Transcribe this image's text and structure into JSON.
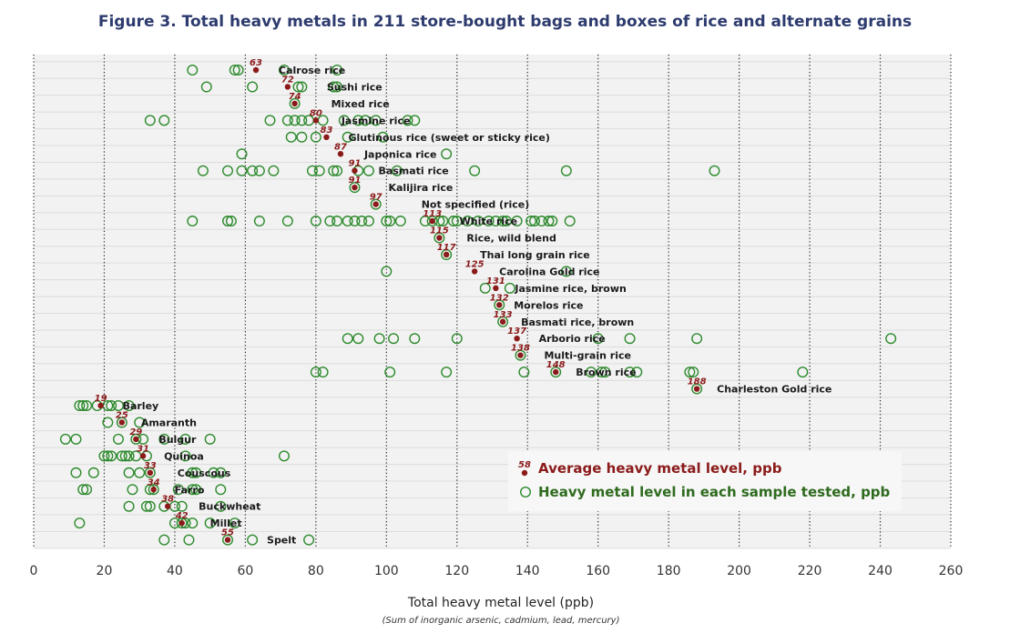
{
  "chart_data": {
    "type": "scatter",
    "title": "Figure 3. Total heavy metals in 211 store-bought bags and boxes of rice and alternate grains",
    "xlabel": "Total heavy metal level (ppb)",
    "xlabel_note": "(Sum of inorganic arsenic, cadmium, lead, mercury)",
    "xlim": [
      0,
      260
    ],
    "xticks": [
      0,
      20,
      40,
      60,
      80,
      100,
      120,
      140,
      160,
      180,
      200,
      220,
      240,
      260
    ],
    "legend": {
      "position": "bottom-right",
      "average_label": "Average heavy metal level, ppb",
      "average_sample": "58",
      "sample_label": "Heavy metal level in each sample tested, ppb"
    },
    "colors": {
      "average": "#8b1a1a",
      "samples": "#2e8b2e",
      "title": "#2d3b6e",
      "plot_bg": "#f2f2f2"
    },
    "rows": [
      {
        "name": "Calrose rice",
        "average": 63,
        "samples": [
          45,
          57,
          58,
          71,
          86
        ]
      },
      {
        "name": "Sushi rice",
        "average": 72,
        "samples": [
          49,
          62,
          75,
          76,
          85,
          86
        ]
      },
      {
        "name": "Mixed rice",
        "average": 74,
        "samples": [
          74
        ]
      },
      {
        "name": "Jasmine rice",
        "average": 80,
        "samples": [
          33,
          37,
          67,
          72,
          74,
          76,
          78,
          82,
          88,
          92,
          94,
          97,
          106,
          108
        ]
      },
      {
        "name": "Glutinous rice (sweet or sticky rice)",
        "average": 83,
        "samples": [
          73,
          76,
          80,
          89,
          99
        ]
      },
      {
        "name": "Japonica rice",
        "average": 87,
        "samples": [
          59,
          117
        ]
      },
      {
        "name": "Basmati rice",
        "average": 91,
        "samples": [
          48,
          55,
          59,
          62,
          64,
          68,
          79,
          81,
          85,
          86,
          92,
          95,
          103,
          125,
          151,
          193
        ]
      },
      {
        "name": "Kalijira rice",
        "average": 91,
        "samples": [
          91
        ]
      },
      {
        "name": "Not specified (rice)",
        "average": 97,
        "samples": [
          97
        ]
      },
      {
        "name": "White rice",
        "average": 113,
        "samples": [
          45,
          55,
          56,
          64,
          72,
          80,
          84,
          86,
          89,
          91,
          93,
          95,
          100,
          101,
          104,
          111,
          113,
          115,
          116,
          119,
          120,
          123,
          126,
          129,
          131,
          133,
          134,
          137,
          141,
          142,
          144,
          146,
          147,
          152
        ]
      },
      {
        "name": "Rice, wild blend",
        "average": 115,
        "samples": [
          115
        ]
      },
      {
        "name": "Thai long grain rice",
        "average": 117,
        "samples": [
          117
        ]
      },
      {
        "name": "Carolina Gold rice",
        "average": 125,
        "samples": [
          100,
          151
        ]
      },
      {
        "name": "Jasmine rice, brown",
        "average": 131,
        "samples": [
          128,
          135
        ]
      },
      {
        "name": "Morelos rice",
        "average": 132,
        "samples": [
          132
        ]
      },
      {
        "name": "Basmati rice, brown",
        "average": 133,
        "samples": [
          133
        ]
      },
      {
        "name": "Arborio rice",
        "average": 137,
        "samples": [
          89,
          92,
          98,
          102,
          108,
          120,
          160,
          169,
          188,
          243
        ]
      },
      {
        "name": "Multi-grain rice",
        "average": 138,
        "samples": [
          138
        ]
      },
      {
        "name": "Brown rice",
        "average": 148,
        "samples": [
          80,
          82,
          101,
          117,
          139,
          148,
          158,
          161,
          162,
          169,
          171,
          186,
          187,
          218
        ]
      },
      {
        "name": "Charleston Gold rice",
        "average": 188,
        "samples": [
          188
        ]
      },
      {
        "name": "Barley",
        "average": 19,
        "samples": [
          13,
          14,
          15,
          18,
          21,
          22,
          24,
          27
        ]
      },
      {
        "name": "Amaranth",
        "average": 25,
        "samples": [
          21,
          25,
          30
        ]
      },
      {
        "name": "Bulgur",
        "average": 29,
        "samples": [
          9,
          12,
          24,
          29,
          31,
          37,
          43,
          50
        ]
      },
      {
        "name": "Quinoa",
        "average": 31,
        "samples": [
          20,
          21,
          22,
          25,
          26,
          27,
          29,
          32,
          43,
          71
        ]
      },
      {
        "name": "Couscous",
        "average": 33,
        "samples": [
          12,
          17,
          27,
          30,
          33,
          45,
          46,
          51,
          53
        ]
      },
      {
        "name": "Farro",
        "average": 34,
        "samples": [
          14,
          15,
          28,
          33,
          34,
          41,
          45,
          46,
          53
        ]
      },
      {
        "name": "Buckwheat",
        "average": 38,
        "samples": [
          27,
          32,
          33,
          37,
          40,
          42,
          53
        ]
      },
      {
        "name": "Millet",
        "average": 42,
        "samples": [
          13,
          40,
          42,
          43,
          45,
          50,
          57
        ]
      },
      {
        "name": "Spelt",
        "average": 55,
        "samples": [
          37,
          44,
          55,
          62,
          78
        ]
      }
    ]
  }
}
